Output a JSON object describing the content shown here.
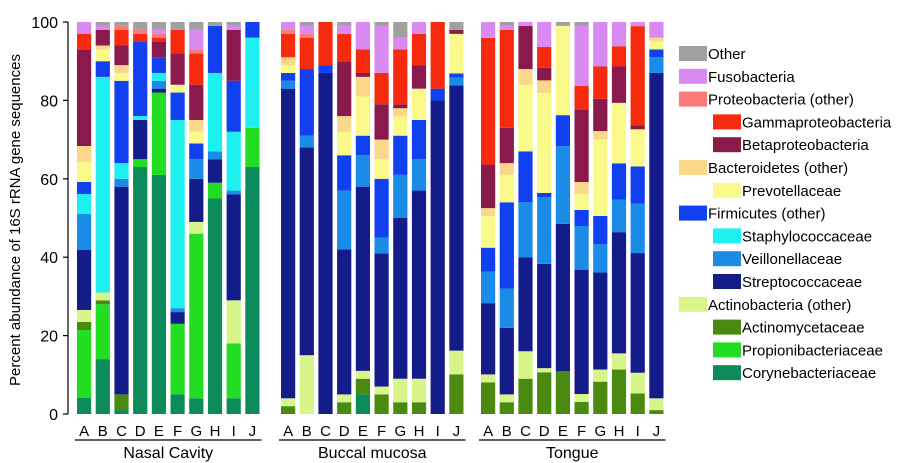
{
  "chart_data": {
    "type": "bar",
    "stacked": true,
    "ylabel": "Percent abundance of 16S rRNA gene sequences",
    "ylim": [
      0,
      100
    ],
    "yticks": [
      0,
      20,
      40,
      60,
      80,
      100
    ],
    "legend_position": "right",
    "taxa": [
      {
        "name": "Corynebacteriaceae",
        "color": "#0c8a5a"
      },
      {
        "name": "Propionibacteriaceae",
        "color": "#22dd22"
      },
      {
        "name": "Actinomycetaceae",
        "color": "#4a8a10"
      },
      {
        "name": "Actinobacteria (other)",
        "color": "#d8f58a"
      },
      {
        "name": "Streptococcaceae",
        "color": "#141c8a"
      },
      {
        "name": "Veillonellaceae",
        "color": "#1a8ce8"
      },
      {
        "name": "Staphylococcaceae",
        "color": "#1ef0f0"
      },
      {
        "name": "Firmicutes (other)",
        "color": "#1040f0"
      },
      {
        "name": "Prevotellaceae",
        "color": "#fafa8a"
      },
      {
        "name": "Bacteroidetes (other)",
        "color": "#fad88a"
      },
      {
        "name": "Betaproteobacteria",
        "color": "#8a1a4c"
      },
      {
        "name": "Gammaproteobacteria",
        "color": "#f62a0c"
      },
      {
        "name": "Proteobacteria (other)",
        "color": "#fa7a7a"
      },
      {
        "name": "Fusobacteria",
        "color": "#d88af0"
      },
      {
        "name": "Other",
        "color": "#a0a0a0"
      }
    ],
    "legend": [
      {
        "key": 14,
        "indent": false
      },
      {
        "key": 13,
        "indent": false
      },
      {
        "key": 12,
        "indent": false
      },
      {
        "key": 11,
        "indent": true
      },
      {
        "key": 10,
        "indent": true
      },
      {
        "key": 9,
        "indent": false
      },
      {
        "key": 8,
        "indent": true
      },
      {
        "key": 7,
        "indent": false
      },
      {
        "key": 6,
        "indent": true
      },
      {
        "key": 5,
        "indent": true
      },
      {
        "key": 4,
        "indent": true
      },
      {
        "key": 3,
        "indent": false
      },
      {
        "key": 2,
        "indent": true
      },
      {
        "key": 1,
        "indent": true
      },
      {
        "key": 0,
        "indent": true
      }
    ],
    "groups": [
      {
        "name": "Nasal Cavity",
        "samples": [
          {
            "label": "A",
            "values": [
              4,
              17,
              2,
              3,
              15,
              9,
              5,
              3,
              5,
              4,
              24,
              4,
              0,
              3,
              0
            ]
          },
          {
            "label": "B",
            "values": [
              14,
              14,
              1,
              2,
              0,
              0,
              55,
              4,
              3,
              1,
              4,
              0,
              0,
              1,
              1
            ]
          },
          {
            "label": "C",
            "values": [
              1,
              0,
              4,
              0,
              53,
              2,
              4,
              21,
              2,
              2,
              5,
              4,
              1,
              0,
              1
            ]
          },
          {
            "label": "D",
            "values": [
              63,
              2,
              0,
              0,
              10,
              0,
              1,
              19,
              0,
              0,
              0,
              2,
              1,
              0,
              2
            ]
          },
          {
            "label": "E",
            "values": [
              61,
              21,
              0,
              0,
              1,
              2,
              2,
              4,
              0,
              0,
              4,
              1,
              1,
              1,
              2
            ]
          },
          {
            "label": "F",
            "values": [
              5,
              18,
              0,
              0,
              3,
              1,
              48,
              7,
              2,
              0,
              8,
              6,
              0,
              0,
              2
            ]
          },
          {
            "label": "G",
            "values": [
              4,
              42,
              0,
              3,
              11,
              5,
              0,
              4,
              3,
              3,
              9,
              8,
              1,
              5,
              2
            ]
          },
          {
            "label": "H",
            "values": [
              55,
              4,
              0,
              0,
              6,
              2,
              20,
              12,
              0,
              0,
              0,
              0,
              0,
              0,
              1
            ]
          },
          {
            "label": "I",
            "values": [
              4,
              14,
              0,
              11,
              27,
              1,
              15,
              13,
              0,
              0,
              13,
              0,
              0,
              1,
              1
            ]
          },
          {
            "label": "J",
            "values": [
              63,
              10,
              0,
              0,
              0,
              0,
              23,
              4,
              0,
              0,
              0,
              0,
              0,
              0,
              0
            ]
          }
        ]
      },
      {
        "name": "Buccal mucosa",
        "samples": [
          {
            "label": "A",
            "values": [
              0,
              0,
              2,
              2,
              79,
              2,
              0,
              2,
              2,
              2,
              0,
              6,
              1,
              2,
              0
            ]
          },
          {
            "label": "B",
            "values": [
              0,
              0,
              0,
              15,
              53,
              3,
              0,
              17,
              0,
              0,
              0,
              8,
              1,
              2,
              1
            ]
          },
          {
            "label": "C",
            "values": [
              0,
              0,
              0,
              0,
              87,
              0,
              0,
              2,
              0,
              0,
              0,
              11,
              0,
              0,
              0
            ]
          },
          {
            "label": "D",
            "values": [
              0,
              0,
              3,
              2,
              37,
              15,
              0,
              9,
              6,
              4,
              14,
              7,
              0,
              2,
              1
            ]
          },
          {
            "label": "E",
            "values": [
              5,
              0,
              4,
              2,
              47,
              8,
              0,
              5,
              10,
              5,
              1,
              6,
              0,
              7,
              0
            ]
          },
          {
            "label": "F",
            "values": [
              0,
              0,
              5,
              2,
              34,
              4,
              0,
              15,
              5,
              5,
              9,
              8,
              0,
              12,
              1
            ]
          },
          {
            "label": "G",
            "values": [
              0,
              0,
              3,
              6,
              41,
              11,
              0,
              10,
              5,
              2,
              1,
              14,
              0,
              3,
              4
            ]
          },
          {
            "label": "H",
            "values": [
              0,
              0,
              3,
              6,
              48,
              8,
              0,
              10,
              8,
              0,
              6,
              8,
              0,
              3,
              0
            ]
          },
          {
            "label": "I",
            "values": [
              0,
              0,
              0,
              0,
              80,
              0,
              0,
              3,
              0,
              0,
              0,
              17,
              0,
              0,
              0
            ]
          },
          {
            "label": "J",
            "values": [
              0,
              0,
              10,
              6,
              67,
              2,
              0,
              1,
              10,
              0,
              1,
              0,
              0,
              0,
              2
            ]
          }
        ]
      },
      {
        "name": "Tongue",
        "samples": [
          {
            "label": "A",
            "values": [
              0,
              0,
              8,
              2,
              18,
              8,
              0,
              6,
              8,
              2,
              11,
              32,
              0,
              4,
              0
            ]
          },
          {
            "label": "B",
            "values": [
              0,
              0,
              3,
              2,
              17,
              10,
              0,
              22,
              7,
              3,
              9,
              25,
              0,
              1,
              1
            ]
          },
          {
            "label": "C",
            "values": [
              0,
              0,
              9,
              7,
              24,
              14,
              0,
              13,
              17,
              4,
              11,
              0,
              0,
              1,
              0
            ]
          },
          {
            "label": "D",
            "values": [
              0,
              0,
              10,
              1,
              25,
              16,
              0,
              1,
              24,
              3,
              3,
              5,
              0,
              6,
              0
            ]
          },
          {
            "label": "E",
            "values": [
              0,
              0,
              11,
              0,
              38,
              20,
              0,
              8,
              23,
              0,
              0,
              0,
              0,
              0,
              1
            ]
          },
          {
            "label": "F",
            "values": [
              0,
              0,
              3,
              2,
              31,
              11,
              0,
              4,
              4,
              3,
              18,
              6,
              0,
              15,
              1
            ]
          },
          {
            "label": "G",
            "values": [
              0,
              0,
              8,
              3,
              24,
              7,
              0,
              7,
              19,
              2,
              8,
              8,
              0,
              11,
              0
            ]
          },
          {
            "label": "H",
            "values": [
              0,
              0,
              11,
              4,
              30,
              8,
              0,
              9,
              15,
              0,
              9,
              5,
              0,
              6,
              0
            ]
          },
          {
            "label": "I",
            "values": [
              0,
              0,
              5,
              5,
              29,
              12,
              0,
              9,
              9,
              0,
              1,
              24,
              0,
              1,
              0
            ]
          },
          {
            "label": "J",
            "values": [
              0,
              0,
              1,
              3,
              83,
              4,
              0,
              2,
              2,
              1,
              0,
              0,
              0,
              4,
              0
            ]
          }
        ]
      }
    ]
  }
}
